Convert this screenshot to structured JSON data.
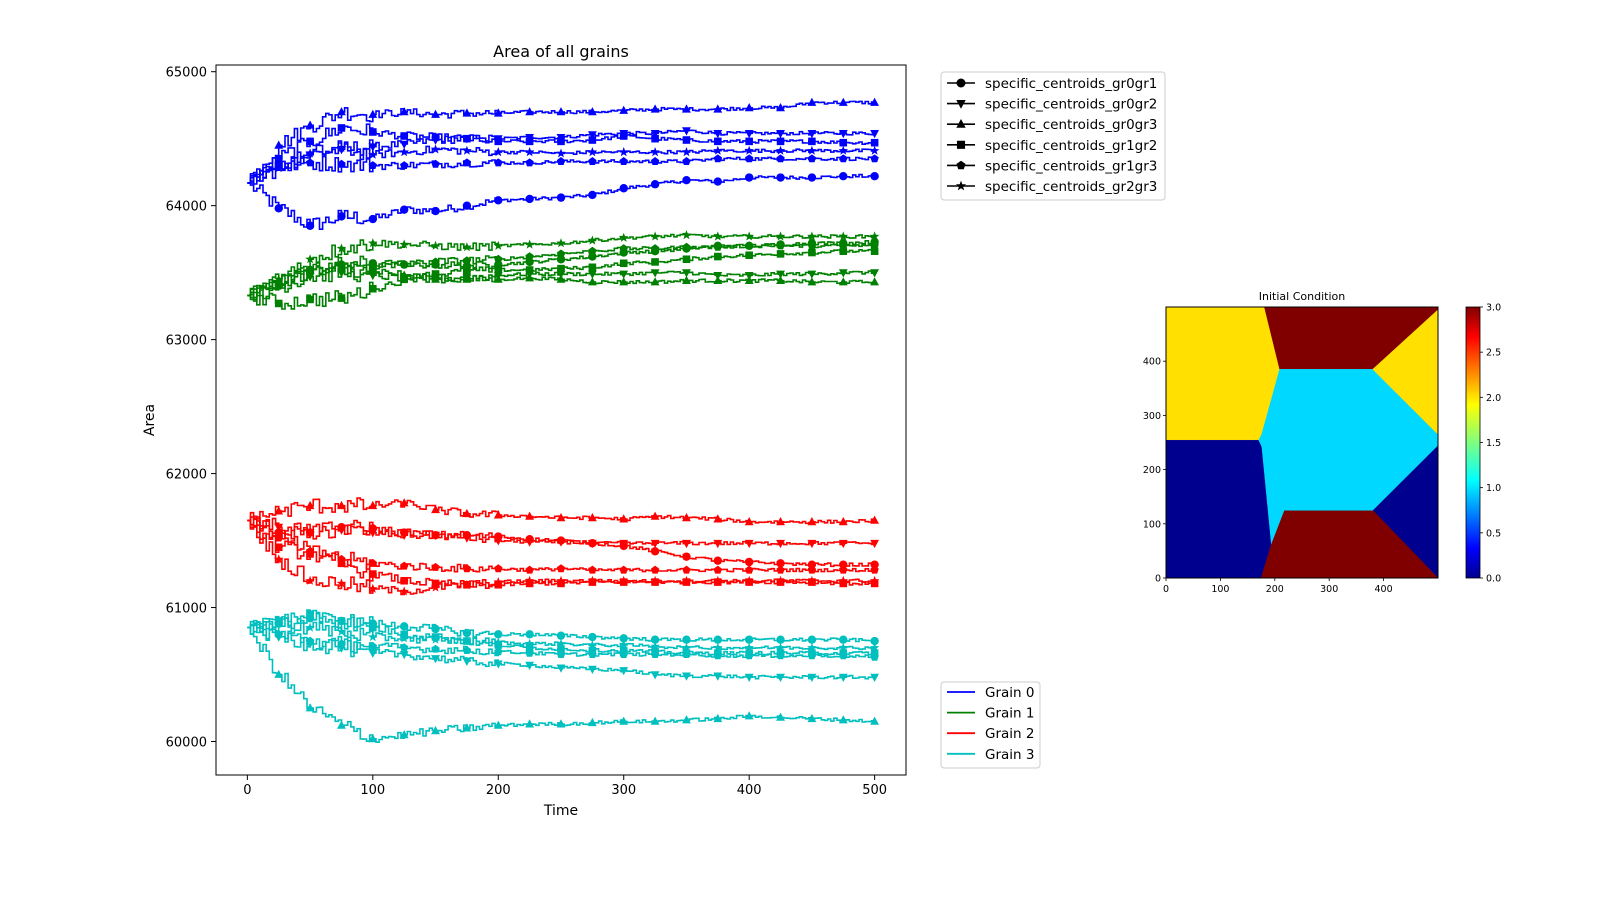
{
  "chart_data": [
    {
      "type": "line",
      "title": "Area of all grains",
      "xlabel": "Time",
      "ylabel": "Area",
      "xlim": [
        -25,
        525
      ],
      "ylim": [
        59750,
        65050
      ],
      "xticks": [
        0,
        100,
        200,
        300,
        400,
        500
      ],
      "yticks": [
        60000,
        61000,
        62000,
        63000,
        64000,
        65000
      ],
      "grid": false,
      "marker_legend": {
        "placement": "outside-top-right",
        "entries": [
          {
            "label": "specific_centroids_gr0gr1",
            "marker": "circle"
          },
          {
            "label": "specific_centroids_gr0gr2",
            "marker": "triangle-down"
          },
          {
            "label": "specific_centroids_gr0gr3",
            "marker": "triangle-up"
          },
          {
            "label": "specific_centroids_gr1gr2",
            "marker": "square"
          },
          {
            "label": "specific_centroids_gr1gr3",
            "marker": "pentagon"
          },
          {
            "label": "specific_centroids_gr2gr3",
            "marker": "star"
          }
        ]
      },
      "grain_legend": {
        "placement": "outside-bottom-right",
        "entries": [
          {
            "label": "Grain 0",
            "color": "#0000ff"
          },
          {
            "label": "Grain 1",
            "color": "#008000"
          },
          {
            "label": "Grain 2",
            "color": "#ff0000"
          },
          {
            "label": "Grain 3",
            "color": "#00bfbf"
          }
        ]
      },
      "x": [
        0,
        25,
        50,
        75,
        100,
        125,
        150,
        175,
        200,
        225,
        250,
        275,
        300,
        325,
        350,
        375,
        400,
        425,
        450,
        475,
        500
      ],
      "series": [
        {
          "grain": 0,
          "color": "#0000ff",
          "marker": "circle",
          "values": [
            64170,
            63980,
            63850,
            63920,
            63900,
            63970,
            63960,
            64000,
            64040,
            64050,
            64060,
            64080,
            64130,
            64160,
            64190,
            64180,
            64210,
            64210,
            64210,
            64220,
            64220
          ]
        },
        {
          "grain": 0,
          "color": "#0000ff",
          "marker": "triangle-down",
          "values": [
            64170,
            64300,
            64380,
            64420,
            64440,
            64460,
            64490,
            64500,
            64500,
            64510,
            64510,
            64530,
            64540,
            64540,
            64560,
            64540,
            64540,
            64540,
            64540,
            64540,
            64540
          ]
        },
        {
          "grain": 0,
          "color": "#0000ff",
          "marker": "triangle-up",
          "values": [
            64170,
            64450,
            64600,
            64700,
            64680,
            64700,
            64680,
            64690,
            64690,
            64700,
            64700,
            64700,
            64710,
            64720,
            64720,
            64720,
            64730,
            64730,
            64770,
            64770,
            64770
          ]
        },
        {
          "grain": 0,
          "color": "#0000ff",
          "marker": "square",
          "values": [
            64170,
            64350,
            64480,
            64580,
            64550,
            64520,
            64510,
            64500,
            64480,
            64480,
            64480,
            64490,
            64520,
            64500,
            64490,
            64480,
            64480,
            64480,
            64480,
            64470,
            64470
          ]
        },
        {
          "grain": 0,
          "color": "#0000ff",
          "marker": "pentagon",
          "values": [
            64170,
            64300,
            64320,
            64310,
            64300,
            64300,
            64310,
            64320,
            64320,
            64320,
            64330,
            64330,
            64330,
            64330,
            64330,
            64350,
            64350,
            64350,
            64350,
            64350,
            64350
          ]
        },
        {
          "grain": 0,
          "color": "#0000ff",
          "marker": "star",
          "values": [
            64170,
            64280,
            64390,
            64430,
            64380,
            64400,
            64420,
            64410,
            64400,
            64400,
            64390,
            64400,
            64400,
            64400,
            64400,
            64410,
            64410,
            64410,
            64410,
            64410,
            64410
          ]
        },
        {
          "grain": 1,
          "color": "#008000",
          "marker": "circle",
          "values": [
            63330,
            63420,
            63520,
            63560,
            63570,
            63560,
            63560,
            63550,
            63560,
            63580,
            63600,
            63620,
            63650,
            63660,
            63680,
            63700,
            63700,
            63710,
            63720,
            63720,
            63730
          ]
        },
        {
          "grain": 1,
          "color": "#008000",
          "marker": "triangle-down",
          "values": [
            63330,
            63400,
            63470,
            63500,
            63480,
            63460,
            63460,
            63460,
            63480,
            63490,
            63490,
            63490,
            63490,
            63500,
            63500,
            63480,
            63480,
            63490,
            63490,
            63500,
            63500
          ]
        },
        {
          "grain": 1,
          "color": "#008000",
          "marker": "triangle-up",
          "values": [
            63330,
            63440,
            63520,
            63530,
            63520,
            63480,
            63450,
            63450,
            63450,
            63460,
            63450,
            63430,
            63430,
            63430,
            63440,
            63440,
            63440,
            63440,
            63430,
            63430,
            63430
          ]
        },
        {
          "grain": 1,
          "color": "#008000",
          "marker": "square",
          "values": [
            63330,
            63270,
            63300,
            63310,
            63380,
            63450,
            63490,
            63510,
            63520,
            63520,
            63530,
            63540,
            63570,
            63580,
            63600,
            63620,
            63630,
            63640,
            63650,
            63660,
            63660
          ]
        },
        {
          "grain": 1,
          "color": "#008000",
          "marker": "pentagon",
          "values": [
            63330,
            63400,
            63500,
            63540,
            63550,
            63560,
            63580,
            63590,
            63600,
            63620,
            63640,
            63660,
            63680,
            63680,
            63690,
            63690,
            63700,
            63700,
            63700,
            63700,
            63700
          ]
        },
        {
          "grain": 1,
          "color": "#008000",
          "marker": "star",
          "values": [
            63330,
            63450,
            63600,
            63680,
            63720,
            63710,
            63700,
            63690,
            63700,
            63710,
            63720,
            63740,
            63760,
            63770,
            63780,
            63770,
            63770,
            63770,
            63770,
            63770,
            63770
          ]
        },
        {
          "grain": 2,
          "color": "#ff0000",
          "marker": "circle",
          "values": [
            61650,
            61560,
            61560,
            61600,
            61590,
            61560,
            61540,
            61540,
            61530,
            61510,
            61500,
            61480,
            61460,
            61420,
            61380,
            61350,
            61340,
            61330,
            61320,
            61320,
            61320
          ]
        },
        {
          "grain": 2,
          "color": "#ff0000",
          "marker": "triangle-down",
          "values": [
            61650,
            61600,
            61560,
            61580,
            61560,
            61540,
            61540,
            61520,
            61500,
            61490,
            61490,
            61480,
            61480,
            61480,
            61480,
            61480,
            61480,
            61480,
            61480,
            61480,
            61480
          ]
        },
        {
          "grain": 2,
          "color": "#ff0000",
          "marker": "triangle-up",
          "values": [
            61650,
            61720,
            61760,
            61760,
            61760,
            61780,
            61730,
            61700,
            61690,
            61680,
            61670,
            61670,
            61660,
            61680,
            61670,
            61660,
            61640,
            61640,
            61640,
            61640,
            61650
          ]
        },
        {
          "grain": 2,
          "color": "#ff0000",
          "marker": "square",
          "values": [
            61650,
            61450,
            61400,
            61330,
            61250,
            61200,
            61180,
            61170,
            61170,
            61180,
            61180,
            61190,
            61190,
            61190,
            61190,
            61190,
            61190,
            61190,
            61190,
            61180,
            61180
          ]
        },
        {
          "grain": 2,
          "color": "#ff0000",
          "marker": "pentagon",
          "values": [
            61650,
            61520,
            61420,
            61360,
            61330,
            61310,
            61300,
            61290,
            61290,
            61280,
            61290,
            61280,
            61280,
            61280,
            61280,
            61280,
            61280,
            61280,
            61280,
            61280,
            61280
          ]
        },
        {
          "grain": 2,
          "color": "#ff0000",
          "marker": "star",
          "values": [
            61650,
            61360,
            61200,
            61180,
            61140,
            61120,
            61150,
            61170,
            61190,
            61200,
            61200,
            61200,
            61200,
            61200,
            61200,
            61200,
            61200,
            61200,
            61200,
            61200,
            61200
          ]
        },
        {
          "grain": 3,
          "color": "#00bfbf",
          "marker": "circle",
          "values": [
            60850,
            60880,
            60920,
            60900,
            60880,
            60860,
            60840,
            60810,
            60800,
            60800,
            60790,
            60780,
            60770,
            60760,
            60760,
            60760,
            60760,
            60760,
            60760,
            60760,
            60750
          ]
        },
        {
          "grain": 3,
          "color": "#00bfbf",
          "marker": "triangle-down",
          "values": [
            60850,
            60780,
            60730,
            60700,
            60660,
            60650,
            60620,
            60600,
            60580,
            60570,
            60550,
            60540,
            60530,
            60500,
            60490,
            60490,
            60480,
            60480,
            60480,
            60480,
            60480
          ]
        },
        {
          "grain": 3,
          "color": "#00bfbf",
          "marker": "triangle-up",
          "values": [
            60850,
            60500,
            60250,
            60120,
            60020,
            60050,
            60080,
            60100,
            60120,
            60130,
            60130,
            60140,
            60150,
            60150,
            60160,
            60170,
            60190,
            60180,
            60170,
            60160,
            60150
          ]
        },
        {
          "grain": 3,
          "color": "#00bfbf",
          "marker": "square",
          "values": [
            60850,
            60900,
            60950,
            60900,
            60850,
            60800,
            60780,
            60750,
            60720,
            60700,
            60690,
            60680,
            60680,
            60670,
            60660,
            60660,
            60660,
            60660,
            60660,
            60660,
            60660
          ]
        },
        {
          "grain": 3,
          "color": "#00bfbf",
          "marker": "pentagon",
          "values": [
            60850,
            60800,
            60750,
            60730,
            60710,
            60700,
            60690,
            60680,
            60670,
            60660,
            60650,
            60650,
            60650,
            60650,
            60650,
            60640,
            60640,
            60640,
            60640,
            60640,
            60630
          ]
        },
        {
          "grain": 3,
          "color": "#00bfbf",
          "marker": "star",
          "values": [
            60850,
            60880,
            60850,
            60820,
            60780,
            60770,
            60760,
            60750,
            60740,
            60730,
            60730,
            60720,
            60720,
            60710,
            60700,
            60700,
            60700,
            60700,
            60700,
            60700,
            60700
          ]
        }
      ]
    },
    {
      "type": "heatmap",
      "title": "Initial Condition",
      "xlim": [
        0,
        500
      ],
      "ylim": [
        0,
        500
      ],
      "xticks": [
        0,
        100,
        200,
        300,
        400
      ],
      "yticks": [
        0,
        100,
        200,
        300,
        400
      ],
      "colorbar": {
        "range": [
          0.0,
          3.0
        ],
        "ticks": [
          "0.0",
          "0.5",
          "1.0",
          "1.5",
          "2.0",
          "2.5",
          "3.0"
        ],
        "colormap": "jet"
      },
      "regions": [
        {
          "value": 0,
          "color": "#00008f",
          "polygon": [
            [
              0,
              0
            ],
            [
              175,
              0
            ],
            [
              193,
              60
            ],
            [
              175,
              245
            ],
            [
              170,
              255
            ],
            [
              0,
              255
            ]
          ]
        },
        {
          "value": 0,
          "color": "#00008f",
          "polygon": [
            [
              380,
              125
            ],
            [
              500,
              245
            ],
            [
              500,
              0
            ],
            [
              500,
              0
            ]
          ]
        },
        {
          "value": 3,
          "color": "#800000",
          "polygon": [
            [
              175,
              0
            ],
            [
              500,
              0
            ],
            [
              380,
              125
            ],
            [
              380,
              125
            ],
            [
              218,
              125
            ],
            [
              193,
              60
            ]
          ]
        },
        {
          "value": 3,
          "color": "#800000",
          "polygon": [
            [
              180,
              500
            ],
            [
              500,
              500
            ],
            [
              500,
              495
            ],
            [
              380,
              385
            ],
            [
              208,
              385
            ],
            [
              180,
              500
            ]
          ]
        },
        {
          "value": 1,
          "color": "#00d8ff",
          "polygon": [
            [
              208,
              385
            ],
            [
              380,
              385
            ],
            [
              500,
              265
            ],
            [
              500,
              245
            ],
            [
              380,
              125
            ],
            [
              218,
              125
            ],
            [
              175,
              245
            ],
            [
              170,
              255
            ],
            [
              175,
              265
            ]
          ]
        },
        {
          "value": 2,
          "color": "#ffe000",
          "polygon": [
            [
              0,
              255
            ],
            [
              170,
              255
            ],
            [
              175,
              265
            ],
            [
              208,
              385
            ],
            [
              180,
              500
            ],
            [
              0,
              500
            ]
          ]
        },
        {
          "value": 2,
          "color": "#ffe000",
          "polygon": [
            [
              380,
              385
            ],
            [
              500,
              495
            ],
            [
              500,
              265
            ]
          ]
        }
      ]
    }
  ]
}
